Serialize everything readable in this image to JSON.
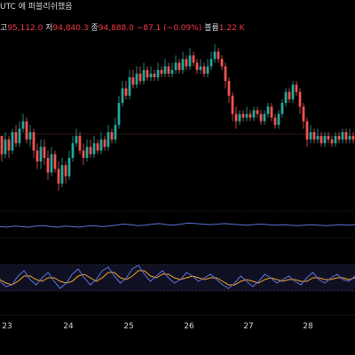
{
  "header": {
    "line1": "UTC 에 퍼블리쉬했음",
    "open_label": "고",
    "open": "95,112.0",
    "low_label": "저",
    "low": "94,840.3",
    "close_label": "종",
    "close": "94,888.0",
    "change": "−87.1 (−0.09%)",
    "volume_label": "볼륨",
    "volume": "1.22 K"
  },
  "colors": {
    "up": "#26a69a",
    "down": "#ef5350",
    "rsi": "#5b73d6",
    "stoch_k": "#5b73d6",
    "stoch_d": "#f5a623",
    "band": "#1a1a3a",
    "text": "#d1d4dc"
  },
  "chart_data": [
    {
      "type": "candlestick",
      "x_ticks": [
        "23",
        "24",
        "25",
        "26",
        "27",
        "28"
      ],
      "candles": [
        [
          95,
          90,
          92,
          88
        ],
        [
          90,
          94,
          96,
          89
        ],
        [
          94,
          91,
          95,
          89
        ],
        [
          91,
          96,
          97,
          90
        ],
        [
          96,
          93,
          98,
          92
        ],
        [
          93,
          97,
          99,
          92
        ],
        [
          97,
          99,
          101,
          96
        ],
        [
          99,
          94,
          100,
          93
        ],
        [
          94,
          96,
          98,
          92
        ],
        [
          96,
          91,
          97,
          89
        ],
        [
          91,
          88,
          93,
          86
        ],
        [
          88,
          92,
          94,
          86
        ],
        [
          92,
          89,
          94,
          87
        ],
        [
          89,
          85,
          91,
          83
        ],
        [
          85,
          90,
          92,
          84
        ],
        [
          90,
          86,
          91,
          85
        ],
        [
          86,
          82,
          88,
          80
        ],
        [
          82,
          87,
          89,
          81
        ],
        [
          87,
          84,
          88,
          82
        ],
        [
          84,
          89,
          91,
          83
        ],
        [
          89,
          93,
          95,
          88
        ],
        [
          93,
          95,
          97,
          92
        ],
        [
          95,
          91,
          96,
          90
        ],
        [
          91,
          89,
          93,
          87
        ],
        [
          89,
          92,
          94,
          88
        ],
        [
          92,
          90,
          94,
          89
        ],
        [
          90,
          93,
          95,
          89
        ],
        [
          93,
          91,
          94,
          90
        ],
        [
          91,
          94,
          96,
          90
        ],
        [
          94,
          92,
          95,
          91
        ],
        [
          92,
          96,
          98,
          91
        ],
        [
          96,
          94,
          97,
          93
        ],
        [
          94,
          98,
          100,
          93
        ],
        [
          98,
          104,
          106,
          97
        ],
        [
          104,
          108,
          110,
          103
        ],
        [
          108,
          106,
          110,
          105
        ],
        [
          106,
          111,
          113,
          105
        ],
        [
          111,
          109,
          113,
          108
        ],
        [
          109,
          112,
          114,
          108
        ],
        [
          112,
          110,
          114,
          109
        ],
        [
          110,
          113,
          115,
          109
        ],
        [
          113,
          111,
          114,
          110
        ],
        [
          111,
          112,
          114,
          110
        ],
        [
          112,
          111,
          113,
          110
        ],
        [
          111,
          113,
          115,
          110
        ],
        [
          113,
          112,
          114,
          111
        ],
        [
          112,
          114,
          116,
          111
        ],
        [
          114,
          112,
          115,
          111
        ],
        [
          112,
          113,
          115,
          111
        ],
        [
          113,
          115,
          117,
          112
        ],
        [
          115,
          113,
          116,
          112
        ],
        [
          113,
          116,
          118,
          112
        ],
        [
          116,
          114,
          117,
          113
        ],
        [
          114,
          117,
          119,
          113
        ],
        [
          117,
          115,
          118,
          114
        ],
        [
          115,
          113,
          116,
          112
        ],
        [
          113,
          114,
          116,
          112
        ],
        [
          114,
          112,
          115,
          111
        ],
        [
          112,
          114,
          116,
          111
        ],
        [
          114,
          116,
          118,
          113
        ],
        [
          116,
          118,
          120,
          115
        ],
        [
          118,
          116,
          119,
          115
        ],
        [
          116,
          114,
          117,
          113
        ],
        [
          114,
          110,
          115,
          108
        ],
        [
          110,
          106,
          111,
          104
        ],
        [
          106,
          101,
          107,
          99
        ],
        [
          101,
          99,
          103,
          97
        ],
        [
          99,
          101,
          102,
          98
        ],
        [
          101,
          100,
          102,
          99
        ],
        [
          100,
          101,
          103,
          99
        ],
        [
          101,
          100,
          102,
          99
        ],
        [
          100,
          102,
          103,
          99
        ],
        [
          102,
          101,
          103,
          100
        ],
        [
          101,
          99,
          102,
          98
        ],
        [
          99,
          101,
          102,
          98
        ],
        [
          101,
          103,
          104,
          100
        ],
        [
          103,
          100,
          104,
          99
        ],
        [
          100,
          98,
          101,
          97
        ],
        [
          98,
          101,
          102,
          97
        ],
        [
          101,
          104,
          105,
          100
        ],
        [
          104,
          107,
          108,
          103
        ],
        [
          107,
          105,
          108,
          104
        ],
        [
          105,
          109,
          110,
          104
        ],
        [
          109,
          107,
          110,
          106
        ],
        [
          107,
          103,
          108,
          101
        ],
        [
          103,
          99,
          104,
          97
        ],
        [
          99,
          94,
          100,
          92
        ],
        [
          94,
          96,
          98,
          93
        ],
        [
          96,
          94,
          97,
          93
        ],
        [
          94,
          95,
          97,
          93
        ],
        [
          95,
          93,
          96,
          92
        ],
        [
          93,
          95,
          96,
          92
        ],
        [
          95,
          94,
          96,
          93
        ],
        [
          94,
          93,
          95,
          92
        ],
        [
          93,
          95,
          96,
          92
        ],
        [
          95,
          94,
          96,
          93
        ],
        [
          94,
          96,
          97,
          93
        ],
        [
          96,
          94,
          97,
          93
        ],
        [
          94,
          95,
          97,
          93
        ],
        [
          95,
          94,
          96,
          93
        ]
      ]
    },
    {
      "type": "line",
      "name": "",
      "values": [
        45,
        44,
        46,
        45,
        44,
        46,
        47,
        45,
        44,
        46,
        45,
        44,
        46,
        47,
        45,
        46,
        48,
        50,
        49,
        47,
        48,
        50,
        51,
        49,
        48,
        50,
        52,
        51,
        50,
        49,
        50,
        51,
        50,
        49,
        48,
        49,
        50,
        49,
        48,
        49,
        48,
        47,
        48,
        49,
        48,
        47,
        48,
        49,
        48,
        49
      ]
    },
    {
      "type": "line",
      "name": "",
      "k": [
        40,
        25,
        30,
        55,
        70,
        45,
        30,
        50,
        65,
        40,
        20,
        35,
        60,
        75,
        50,
        30,
        45,
        70,
        80,
        55,
        35,
        50,
        75,
        85,
        60,
        40,
        55,
        70,
        50,
        35,
        45,
        65,
        55,
        40,
        50,
        60,
        45,
        30,
        20,
        35,
        55,
        40,
        25,
        40,
        60,
        50,
        35,
        45,
        55,
        40,
        30,
        50,
        65,
        45,
        35,
        50,
        60,
        45,
        40,
        55
      ],
      "d": [
        45,
        35,
        30,
        40,
        55,
        55,
        45,
        40,
        50,
        50,
        40,
        35,
        40,
        55,
        60,
        50,
        40,
        50,
        65,
        65,
        50,
        45,
        55,
        70,
        70,
        55,
        50,
        60,
        60,
        50,
        45,
        50,
        55,
        50,
        45,
        50,
        50,
        40,
        30,
        30,
        40,
        45,
        40,
        35,
        45,
        50,
        45,
        40,
        45,
        45,
        40,
        40,
        50,
        50,
        45,
        45,
        50,
        50,
        45,
        50
      ]
    }
  ]
}
